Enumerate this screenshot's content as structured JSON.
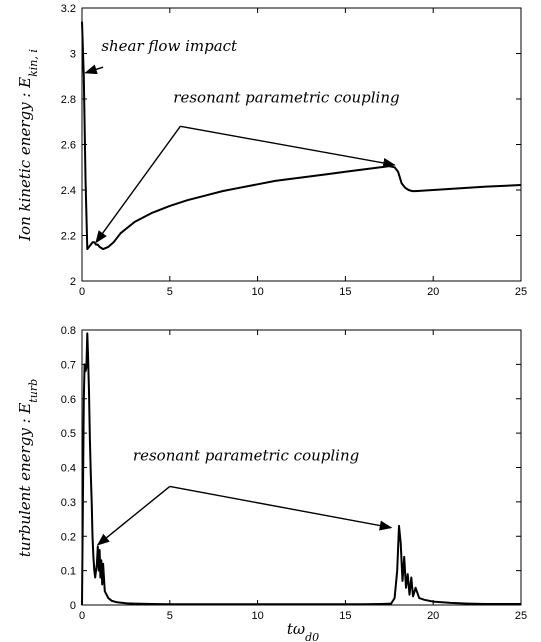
{
  "chart_data": [
    {
      "type": "line",
      "ylabel": "Ion kinetic energy : E",
      "ylabel_sub": "kin, i",
      "xlabel": "",
      "xlim": [
        0,
        25
      ],
      "ylim": [
        2,
        3.2
      ],
      "xticks": [
        0,
        5,
        10,
        15,
        20,
        25
      ],
      "yticks": [
        2,
        2.2,
        2.4,
        2.6,
        2.8,
        3,
        3.2
      ],
      "ytick_labels": [
        "2",
        "2.2",
        "2.4",
        "2.6",
        "2.8",
        "3",
        "3.2"
      ],
      "grid": false,
      "series": [
        {
          "x": [
            0,
            0.1,
            0.2,
            0.3,
            0.4,
            0.5,
            0.6,
            0.7,
            0.8,
            0.9,
            1.0,
            1.2,
            1.5,
            1.8,
            2.2,
            3,
            4,
            5,
            6,
            7,
            8,
            9,
            10,
            11,
            12,
            13,
            14,
            15,
            16,
            17,
            17.5,
            17.8,
            18.0,
            18.2,
            18.4,
            18.6,
            18.8,
            19,
            20,
            21,
            22,
            23,
            24,
            25
          ],
          "y": [
            3.14,
            2.9,
            2.45,
            2.14,
            2.15,
            2.16,
            2.17,
            2.17,
            2.16,
            2.16,
            2.15,
            2.14,
            2.15,
            2.17,
            2.21,
            2.26,
            2.3,
            2.33,
            2.355,
            2.375,
            2.395,
            2.41,
            2.425,
            2.44,
            2.45,
            2.46,
            2.47,
            2.48,
            2.49,
            2.5,
            2.505,
            2.5,
            2.48,
            2.43,
            2.41,
            2.4,
            2.395,
            2.395,
            2.4,
            2.405,
            2.41,
            2.415,
            2.418,
            2.422
          ]
        }
      ],
      "annotations": [
        {
          "text": "shear flow impact",
          "x": 1.1,
          "y": 3.01,
          "arrow_from": [
            1.2,
            2.94
          ],
          "arrow_to": [
            0.2,
            2.915
          ]
        },
        {
          "text": "resonant parametric coupling",
          "x": 5.2,
          "y": 2.785,
          "arrow_from": [
            5.6,
            2.68
          ],
          "arrow_to": [
            0.8,
            2.17
          ],
          "arrow2_to": [
            17.8,
            2.51
          ]
        }
      ]
    },
    {
      "type": "line",
      "ylabel": "turbulent energy : E",
      "ylabel_sub": "turb",
      "xlabel": "tω",
      "xlabel_sub": "d0",
      "xlim": [
        0,
        25
      ],
      "ylim": [
        0,
        0.8
      ],
      "xticks": [
        0,
        5,
        10,
        15,
        20,
        25
      ],
      "yticks": [
        0,
        0.1,
        0.2,
        0.3,
        0.4,
        0.5,
        0.6,
        0.7,
        0.8
      ],
      "ytick_labels": [
        "0",
        "0.1",
        "0.2",
        "0.3",
        "0.4",
        "0.5",
        "0.6",
        "0.7",
        "0.8"
      ],
      "grid": false,
      "series": [
        {
          "x": [
            0,
            0.05,
            0.1,
            0.15,
            0.2,
            0.25,
            0.3,
            0.35,
            0.4,
            0.45,
            0.5,
            0.55,
            0.6,
            0.65,
            0.7,
            0.75,
            0.8,
            0.85,
            0.9,
            0.95,
            1.0,
            1.05,
            1.1,
            1.15,
            1.2,
            1.3,
            1.4,
            1.5,
            1.7,
            2.0,
            2.5,
            3,
            4,
            5,
            7,
            10,
            13,
            15,
            16,
            17,
            17.6,
            17.8,
            17.95,
            18.05,
            18.15,
            18.25,
            18.35,
            18.45,
            18.55,
            18.65,
            18.75,
            18.85,
            19,
            19.2,
            19.5,
            20,
            21,
            22,
            23,
            25
          ],
          "y": [
            0,
            0.3,
            0.6,
            0.7,
            0.68,
            0.69,
            0.79,
            0.72,
            0.62,
            0.48,
            0.38,
            0.3,
            0.2,
            0.14,
            0.1,
            0.08,
            0.1,
            0.12,
            0.17,
            0.1,
            0.16,
            0.08,
            0.13,
            0.06,
            0.12,
            0.04,
            0.03,
            0.02,
            0.012,
            0.008,
            0.005,
            0.004,
            0.003,
            0.002,
            0.002,
            0.002,
            0.002,
            0.002,
            0.002,
            0.003,
            0.004,
            0.02,
            0.1,
            0.23,
            0.18,
            0.07,
            0.14,
            0.05,
            0.09,
            0.03,
            0.08,
            0.025,
            0.05,
            0.02,
            0.015,
            0.01,
            0.006,
            0.004,
            0.003,
            0.003
          ]
        }
      ],
      "annotations": [
        {
          "text": "resonant parametric coupling",
          "x": 2.9,
          "y": 0.42,
          "arrow_from": [
            5.0,
            0.345
          ],
          "arrow_to": [
            0.9,
            0.175
          ],
          "arrow2_to": [
            17.6,
            0.225
          ]
        }
      ]
    }
  ]
}
